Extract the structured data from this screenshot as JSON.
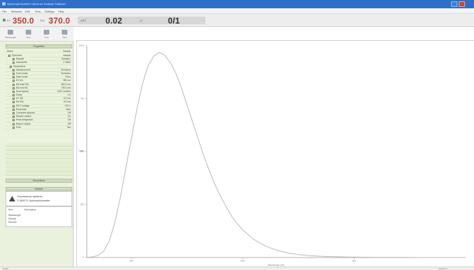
{
  "window": {
    "title": "Spectrophotometer Spectrum Analysis Software"
  },
  "menu": [
    {
      "label": "File"
    },
    {
      "label": "Measure"
    },
    {
      "label": "Edit"
    },
    {
      "label": "View"
    },
    {
      "label": "Settings"
    },
    {
      "label": "Help"
    }
  ],
  "readout": {
    "start_label": "EX",
    "start_value": "350.0",
    "end_label": "EM",
    "end_value": "370.0",
    "step_label": "ABS",
    "step_value": "0.02",
    "mode_label": "N",
    "mode_value": "0/1"
  },
  "toolbar": [
    {
      "label": "Wavelength",
      "icon": "spectrum-icon"
    },
    {
      "label": "Scan",
      "icon": "scan-icon"
    },
    {
      "label": "Time",
      "icon": "clock-icon"
    },
    {
      "label": "Print",
      "icon": "printer-icon"
    }
  ],
  "left_panel": {
    "header": "Properties",
    "root_name": "Name",
    "root_value": "Sample",
    "properties": [
      {
        "name": "Spectrum",
        "value": "sample"
      },
      {
        "name": "Sample",
        "value": "Sample1"
      },
      {
        "name": "Instrument",
        "value": "F-4600"
      },
      {
        "name": "Parameters",
        "value": ""
      },
      {
        "name": "Measurement",
        "value": "Emission"
      },
      {
        "name": "Scan mode",
        "value": "Emission"
      },
      {
        "name": "Data mode",
        "value": "Fluor"
      },
      {
        "name": "EX WL",
        "value": "350 nm"
      },
      {
        "name": "EM start WL",
        "value": "360.0 nm"
      },
      {
        "name": "EM end WL",
        "value": "700.0 nm"
      },
      {
        "name": "Scan speed",
        "value": "1200 nm/min"
      },
      {
        "name": "Delay",
        "value": "0 s"
      },
      {
        "name": "EX Slit",
        "value": "5.0 nm"
      },
      {
        "name": "EM Slit",
        "value": "5.0 nm"
      },
      {
        "name": "PMT Voltage",
        "value": "700 V"
      },
      {
        "name": "Response",
        "value": "Auto"
      },
      {
        "name": "Corrected spectra",
        "value": "Off"
      },
      {
        "name": "Shutter control",
        "value": "On"
      },
      {
        "name": "Peak integration",
        "value": "Off"
      },
      {
        "name": "Report output",
        "value": "Off"
      },
      {
        "name": "Print",
        "value": "Yes"
      }
    ],
    "info_header": "Information",
    "preview_header": "Sample",
    "preview_line1": "Fluorescence spectrum",
    "preview_line2": "F-4600 FL Spectrophotometer",
    "notes_col1": "Item",
    "notes_col2": "Description",
    "notes_rows": [
      "Wavelength",
      "Sample",
      "Remark"
    ]
  },
  "chart_data": {
    "type": "line",
    "title": "",
    "xlabel": "Wavelength (nm)",
    "ylabel": "Data",
    "xlim": [
      360,
      700
    ],
    "ylim": [
      0,
      1000
    ],
    "x_ticks": [
      400,
      500,
      600
    ],
    "y_ticks": [
      0,
      250,
      500,
      750,
      1000
    ],
    "series": [
      {
        "name": "",
        "x": [
          360,
          365,
          370,
          375,
          380,
          385,
          390,
          395,
          400,
          405,
          410,
          415,
          420,
          425,
          430,
          435,
          440,
          445,
          450,
          455,
          460,
          465,
          470,
          475,
          480,
          485,
          490,
          495,
          500,
          510,
          520,
          530,
          540,
          550,
          560,
          570,
          580,
          590,
          600,
          620,
          640,
          660,
          680,
          700
        ],
        "values": [
          0,
          3,
          10,
          28,
          75,
          160,
          280,
          420,
          560,
          700,
          820,
          905,
          950,
          968,
          955,
          920,
          870,
          800,
          720,
          640,
          560,
          480,
          410,
          345,
          290,
          240,
          195,
          160,
          130,
          85,
          55,
          35,
          22,
          14,
          9,
          6,
          4,
          3,
          2,
          1,
          1,
          0,
          0,
          0
        ]
      }
    ],
    "line_color": "#b9b9b9",
    "grid": false
  },
  "status": {
    "left": "Ready",
    "right": "Sample 1"
  }
}
